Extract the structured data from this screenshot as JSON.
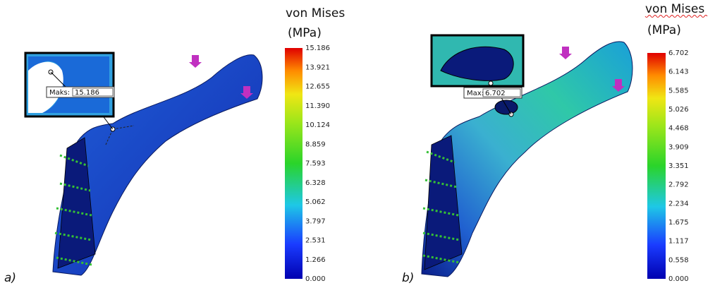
{
  "panels": [
    {
      "label": "a)",
      "legend": {
        "title": "von Mises",
        "unit": "(MPa)",
        "ticks": [
          "15.186",
          "13.921",
          "12.655",
          "11.390",
          "10.124",
          "8.859",
          "7.593",
          "6.328",
          "5.062",
          "3.797",
          "2.531",
          "1.266",
          "0.000"
        ]
      },
      "callout": {
        "key": "Maks:",
        "value": "15.186"
      }
    },
    {
      "label": "b)",
      "legend": {
        "title": "von Mises",
        "unit": "(MPa)",
        "ticks": [
          "6.702",
          "6.143",
          "5.585",
          "5.026",
          "4.468",
          "3.909",
          "3.351",
          "2.792",
          "2.234",
          "1.675",
          "1.117",
          "0.558",
          "0.000"
        ]
      },
      "callout": {
        "key": "Max:",
        "value": "6.702"
      }
    }
  ]
}
